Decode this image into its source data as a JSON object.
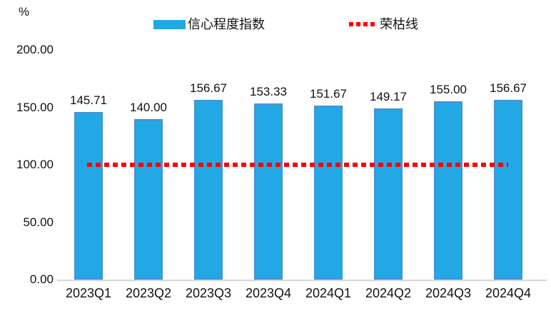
{
  "legend": {
    "series_label": "信心程度指数",
    "threshold_label": "荣枯线"
  },
  "colors": {
    "bar_fill": "#22A9E5",
    "bar_border": "#4691D3",
    "threshold_red": "#FF0000",
    "axis_line": "#D6D6D6",
    "text": "#111111"
  },
  "chart_data": {
    "type": "bar",
    "title": "",
    "ylabel": "%",
    "xlabel": "",
    "categories": [
      "2023Q1",
      "2023Q2",
      "2023Q3",
      "2023Q4",
      "2024Q1",
      "2024Q2",
      "2024Q3",
      "2024Q4"
    ],
    "series": [
      {
        "name": "信心程度指数",
        "values": [
          145.71,
          140.0,
          156.67,
          153.33,
          151.67,
          149.17,
          155.0,
          156.67
        ]
      }
    ],
    "value_labels": [
      "145.71",
      "140.00",
      "156.67",
      "153.33",
      "151.67",
      "149.17",
      "155.00",
      "156.67"
    ],
    "threshold_line": {
      "name": "荣枯线",
      "value": 100
    },
    "ylim": [
      0,
      200
    ],
    "yticks": [
      0,
      50,
      100,
      150,
      200
    ],
    "ytick_labels": [
      "0.00",
      "50.00",
      "100.00",
      "150.00",
      "200.00"
    ],
    "legend_position": "top",
    "grid": false
  }
}
